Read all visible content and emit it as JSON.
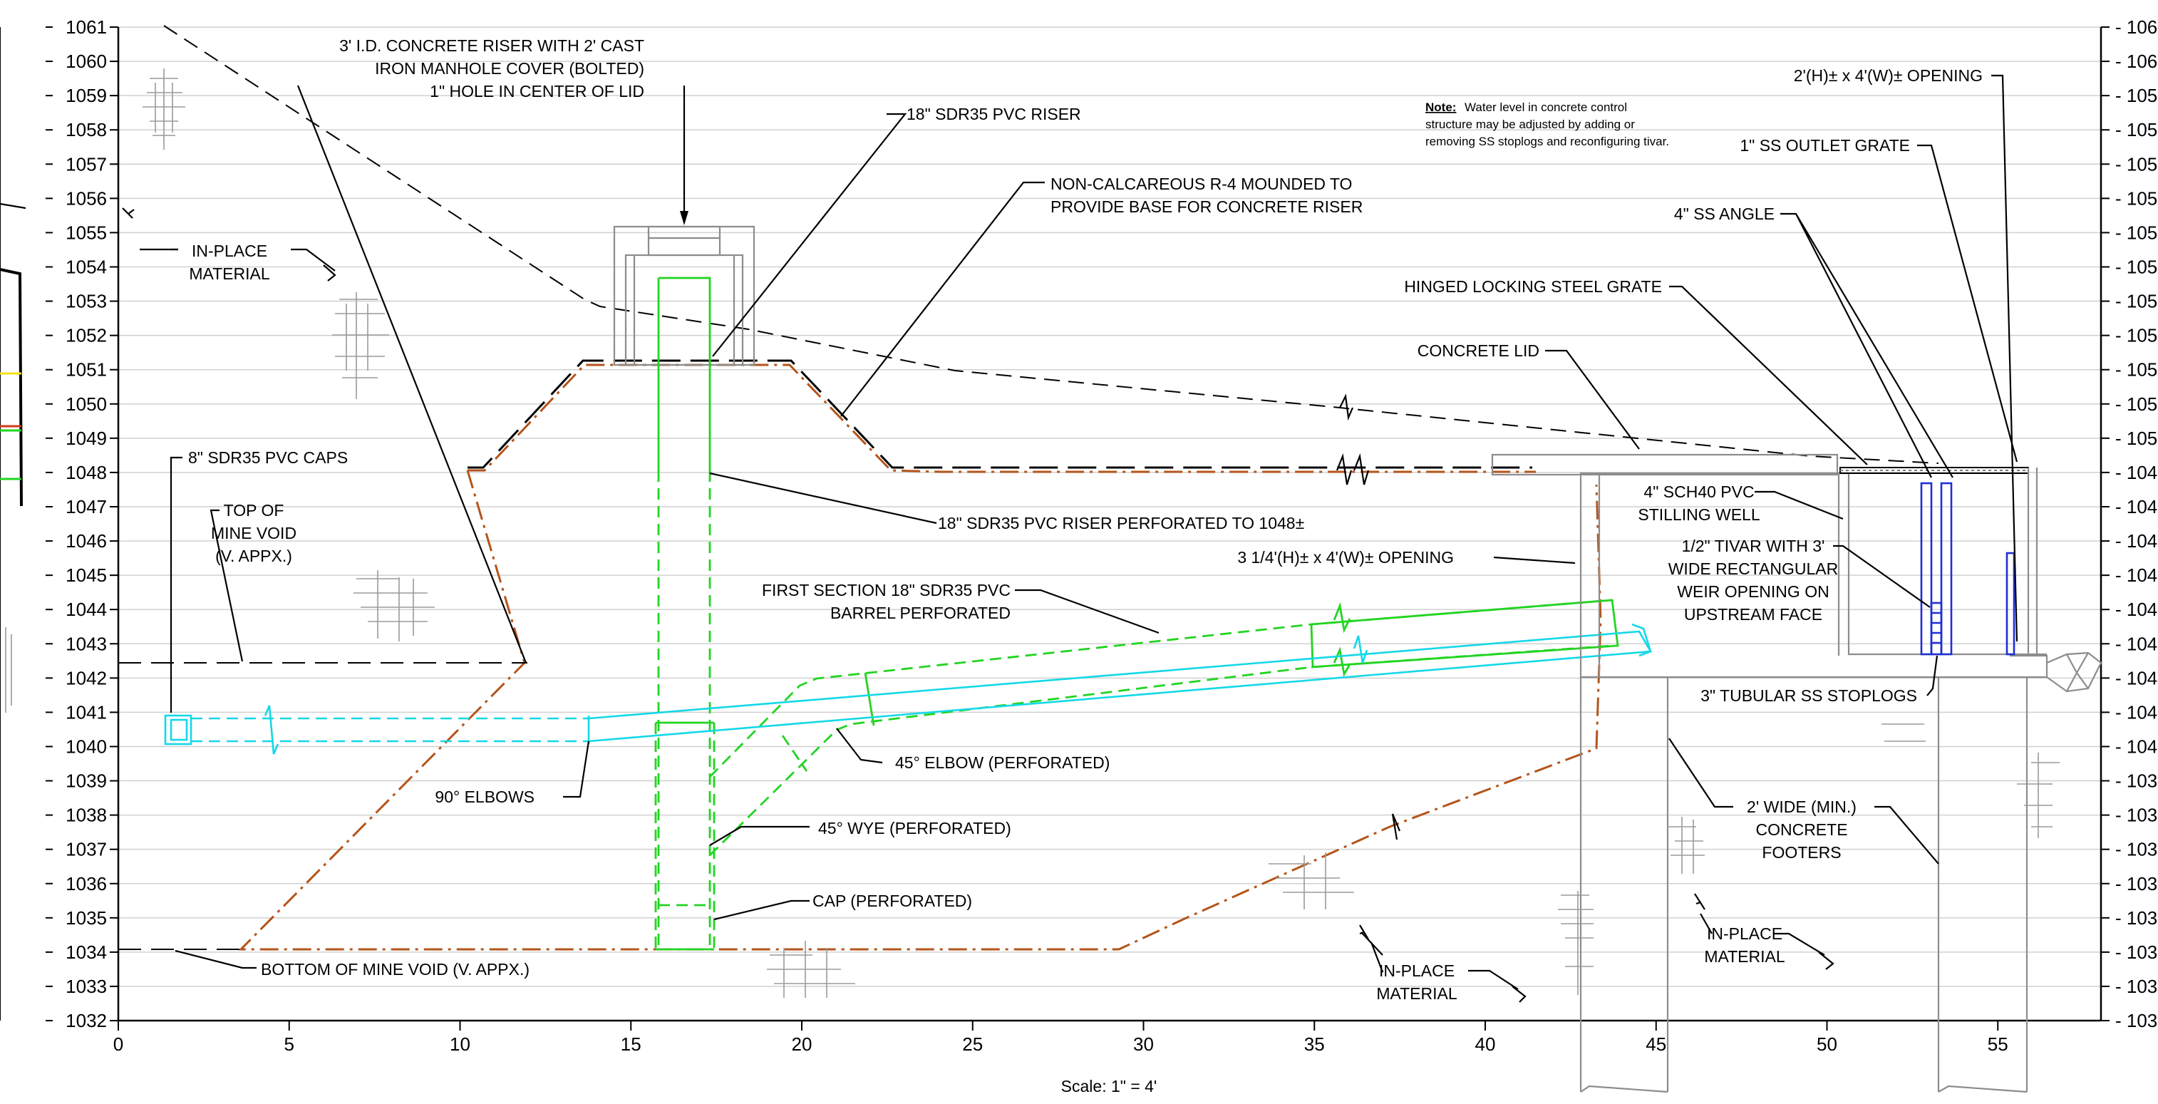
{
  "axes": {
    "elevations": [
      1061,
      1060,
      1059,
      1058,
      1057,
      1056,
      1055,
      1054,
      1053,
      1052,
      1051,
      1050,
      1049,
      1048,
      1047,
      1046,
      1045,
      1044,
      1043,
      1042,
      1041,
      1040,
      1039,
      1038,
      1037,
      1036,
      1035,
      1034,
      1033,
      1032
    ],
    "stations": [
      0,
      5,
      10,
      15,
      20,
      25,
      30,
      35,
      40,
      45,
      50,
      55
    ],
    "right_labels": [
      "106",
      "106",
      "105",
      "105",
      "105",
      "105",
      "105",
      "105",
      "105",
      "105",
      "105",
      "105",
      "105",
      "104",
      "104",
      "104",
      "104",
      "104",
      "104",
      "104",
      "104",
      "104",
      "103",
      "103",
      "103",
      "103",
      "103",
      "103",
      "103",
      "103"
    ],
    "scale_label": "Scale:  1\" = 4'"
  },
  "note": {
    "heading": "Note:",
    "line1": "Water level in concrete control",
    "line2": "structure may be adjusted by adding or",
    "line3": "removing SS stoplogs and reconfiguring tivar."
  },
  "labels": {
    "riser_top_1": "3' I.D. CONCRETE RISER WITH 2'  CAST",
    "riser_top_2": "IRON MANHOLE COVER (BOLTED)",
    "riser_top_3": "1\" HOLE IN CENTER OF LID",
    "pvc_riser": "18\" SDR35 PVC RISER",
    "r4_1": "NON-CALCAREOUS R-4 MOUNDED TO",
    "r4_2": "PROVIDE BASE FOR CONCRETE RISER",
    "inplace_left_1": "IN-PLACE",
    "inplace_left_2": "MATERIAL",
    "caps": "8\" SDR35 PVC CAPS",
    "top_void_1": "TOP OF",
    "top_void_2": "MINE VOID",
    "top_void_3": "(V. APPX.)",
    "riser_perf": "18\" SDR35 PVC RISER PERFORATED TO 1048±",
    "first_section_1": "FIRST SECTION 18\" SDR35 PVC",
    "first_section_2": "BARREL PERFORATED",
    "elbow45": "45° ELBOW (PERFORATED)",
    "elbows90": "90° ELBOWS",
    "wye45": "45° WYE (PERFORATED)",
    "cap_perf": "CAP (PERFORATED)",
    "bottom_void": "BOTTOM OF MINE VOID (V. APPX.)",
    "inplace_mid_1": "IN-PLACE",
    "inplace_mid_2": "MATERIAL",
    "opening_top": "2'(H)± x 4'(W)± OPENING",
    "outlet_grate": "1\" SS OUTLET GRATE",
    "ss_angle": "4\" SS ANGLE",
    "hinged_grate": "HINGED LOCKING STEEL GRATE",
    "concrete_lid": "CONCRETE LID",
    "stilling_1": "4\" SCH40 PVC",
    "stilling_2": "STILLING WELL",
    "opening_mid": "3 1/4'(H)± x 4'(W)± OPENING",
    "tivar_1": "1/2\" TIVAR WITH 3'",
    "tivar_2": "WIDE RECTANGULAR",
    "tivar_3": "WEIR OPENING ON",
    "tivar_4": "UPSTREAM FACE",
    "stoplogs": "3\" TUBULAR SS STOPLOGS",
    "footers_1": "2' WIDE (MIN.)",
    "footers_2": "CONCRETE",
    "footers_3": "FOOTERS",
    "inplace_right_1": "IN-PLACE",
    "inplace_right_2": "MATERIAL"
  },
  "colors": {
    "ground": "#b4541a",
    "pvc_riser": "#22d422",
    "pipe": "#14d8e8",
    "stoplogs": "#1f2fd6",
    "concrete": "#8c8c8c"
  }
}
